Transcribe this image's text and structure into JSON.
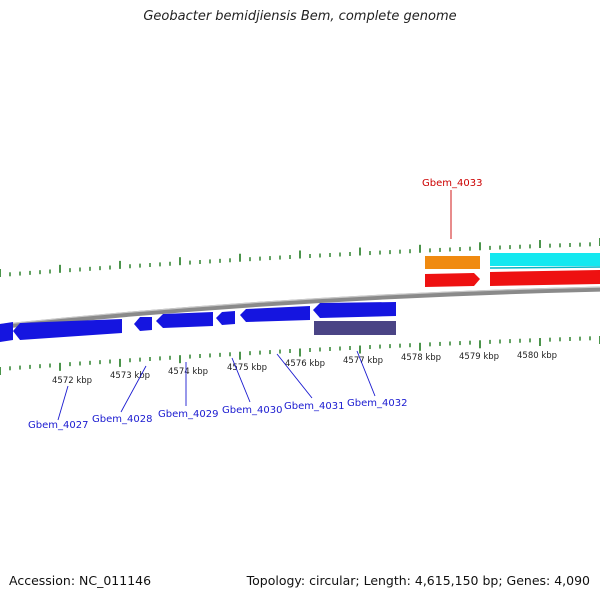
{
  "header": {
    "title": "Geobacter bemidjiensis Bem, complete genome"
  },
  "footer": {
    "accession": "Accession: NC_011146",
    "summary": "Topology: circular; Length: 4,615,150 bp; Genes: 4,090"
  },
  "genome_map": {
    "scale_labels": [
      "4572 kbp",
      "4573 kbp",
      "4574 kbp",
      "4575 kbp",
      "4576 kbp",
      "4577 kbp",
      "4578 kbp",
      "4579 kbp",
      "4580 kbp"
    ],
    "gene_labels": [
      {
        "text": "Gbem_4027",
        "color": "#1a1ad0"
      },
      {
        "text": "Gbem_4028",
        "color": "#1a1ad0"
      },
      {
        "text": "Gbem_4029",
        "color": "#1a1ad0"
      },
      {
        "text": "Gbem_4030",
        "color": "#1a1ad0"
      },
      {
        "text": "Gbem_4031",
        "color": "#1a1ad0"
      },
      {
        "text": "Gbem_4032",
        "color": "#1a1ad0"
      },
      {
        "text": "Gbem_4033",
        "color": "#cc0000"
      }
    ],
    "colors": {
      "reverse_gene": "#1515e0",
      "rna_feature": "#4a4485",
      "forward_gene": "#ee1111",
      "orange_feature": "#f08a10",
      "cyan_feature": "#14e8f0",
      "tick": "#1e7a1e",
      "backbone": "#8a8a8a",
      "scale_text": "#222222"
    }
  }
}
